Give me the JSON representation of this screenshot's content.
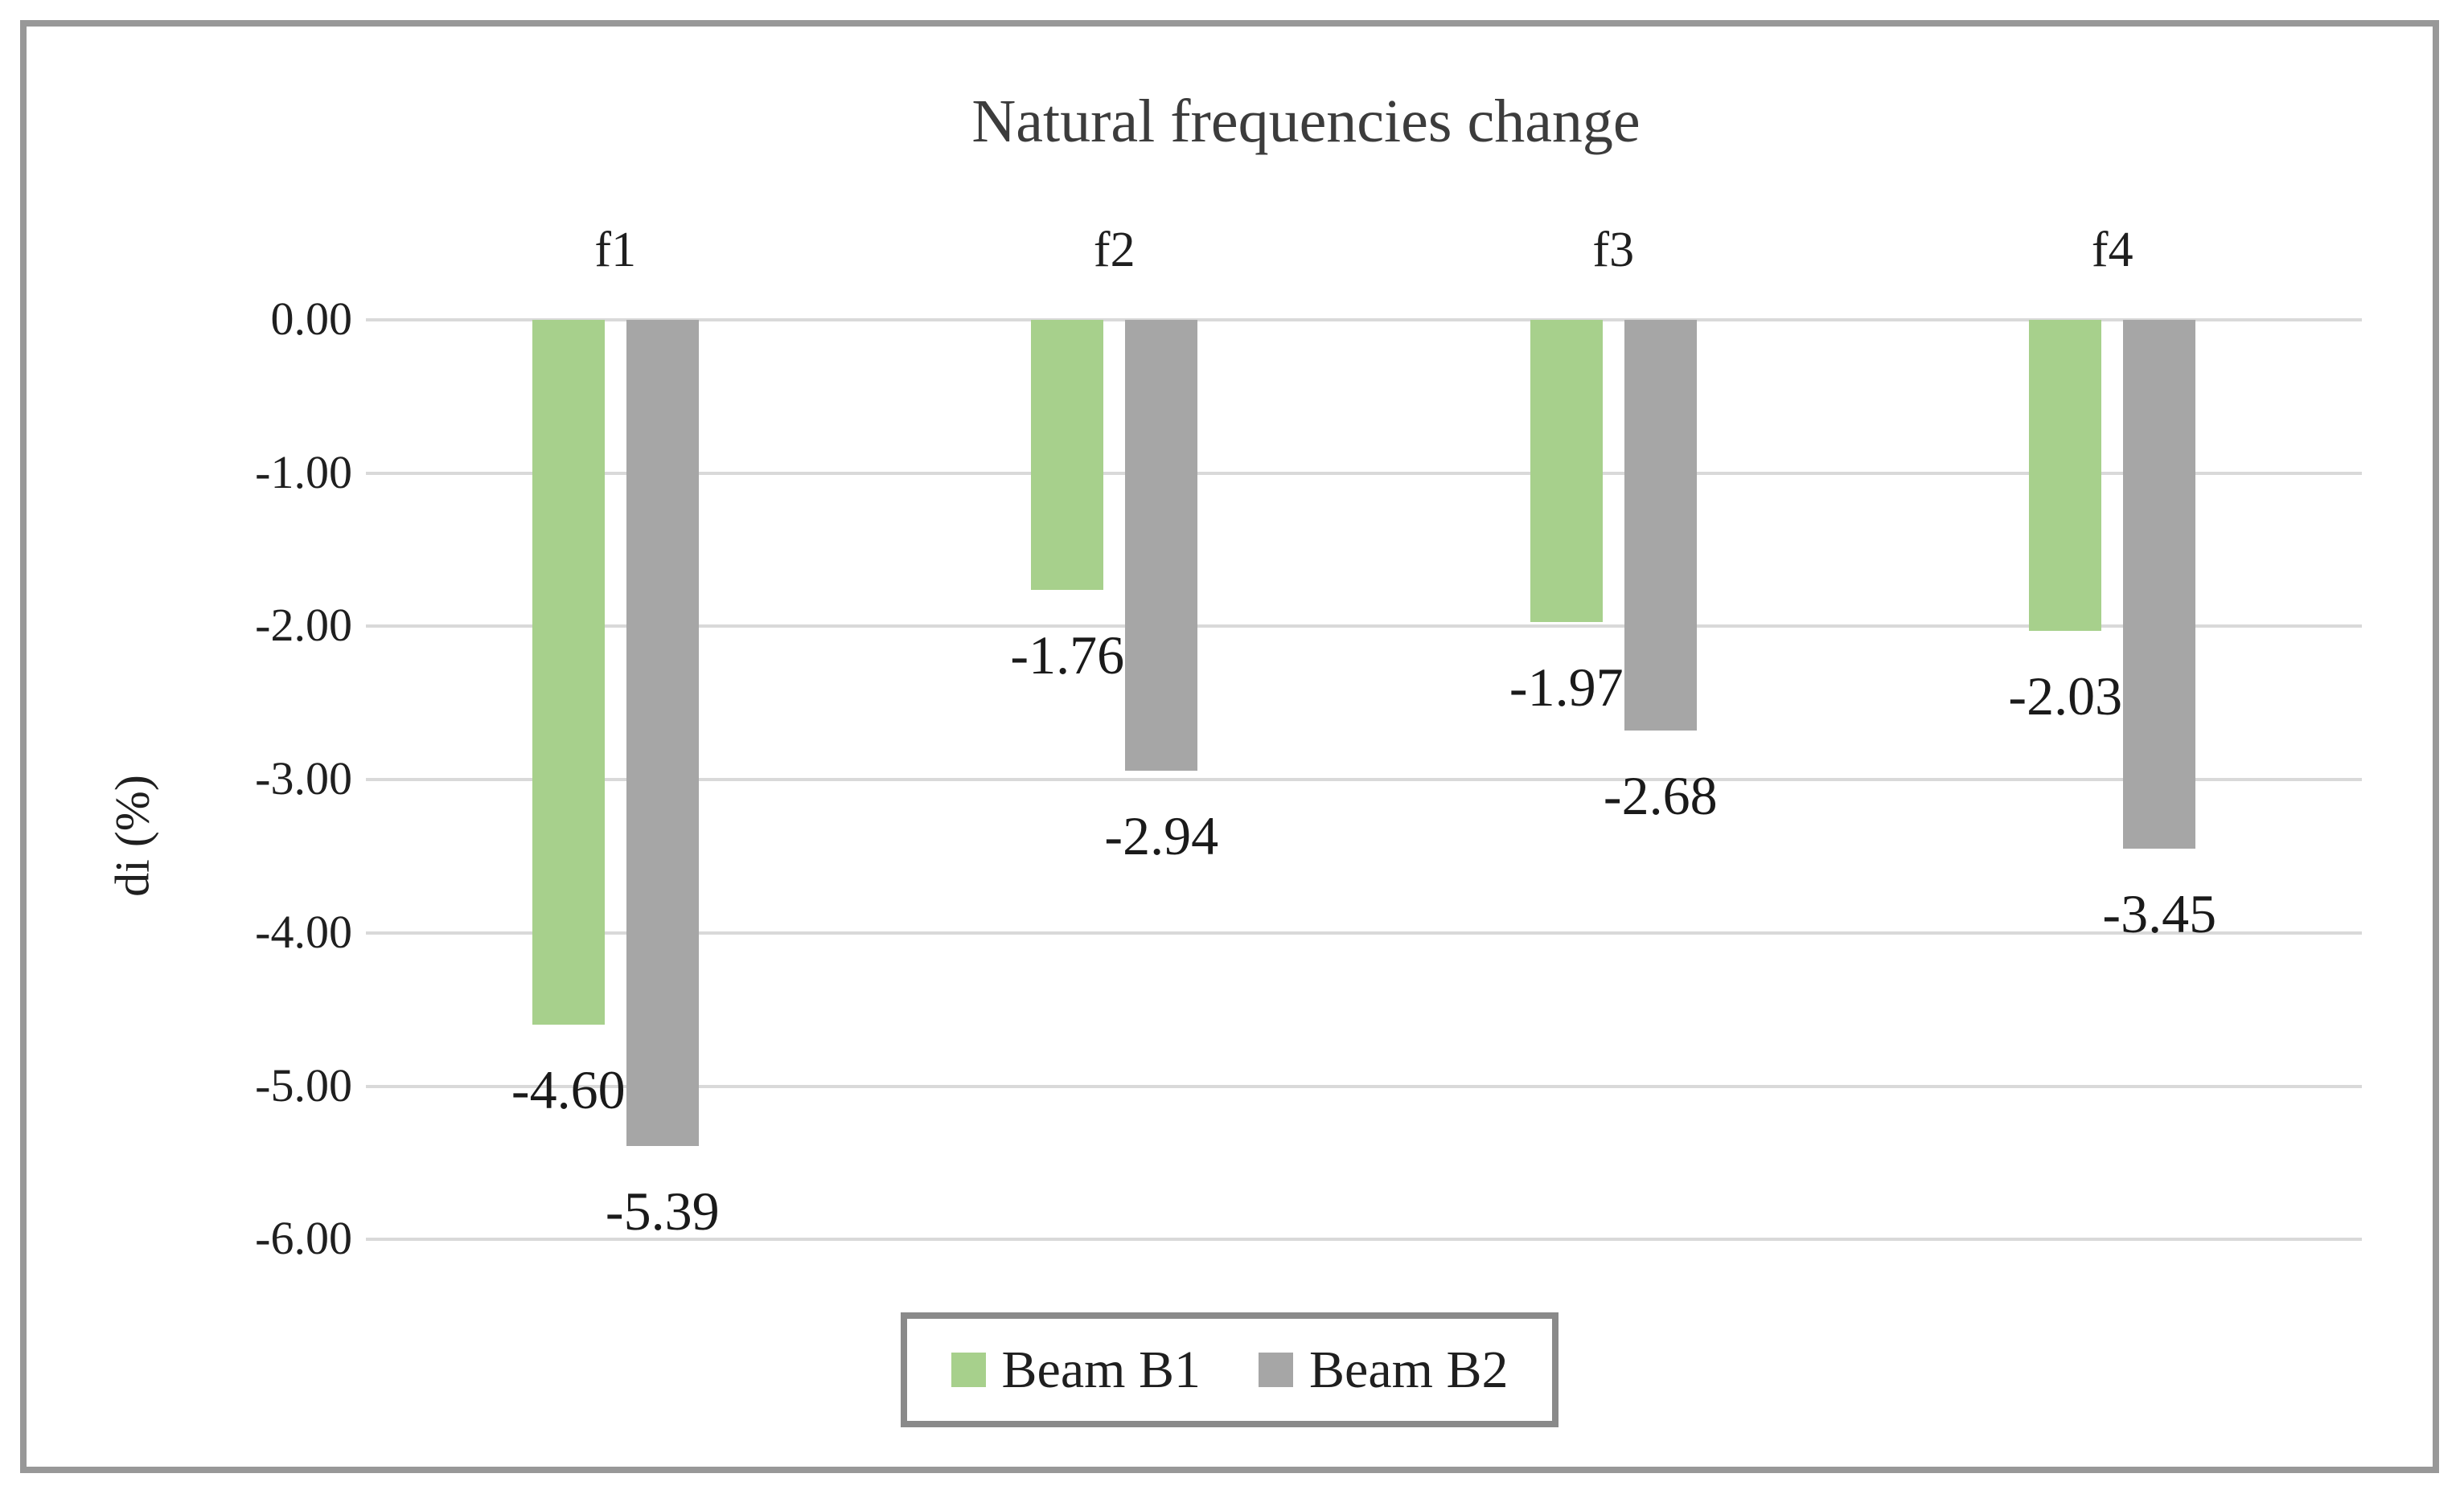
{
  "figure": {
    "background": "#ffffff",
    "border_color": "#989898"
  },
  "chart_data": {
    "type": "bar",
    "title": "Natural frequencies change",
    "categories": [
      "f1",
      "f2",
      "f3",
      "f4"
    ],
    "series": [
      {
        "name": "Beam B1",
        "color": "#a7d08c",
        "values": [
          -4.6,
          -1.76,
          -1.97,
          -2.03
        ]
      },
      {
        "name": "Beam B2",
        "color": "#a6a6a6",
        "values": [
          -5.39,
          -2.94,
          -2.68,
          -3.45
        ]
      }
    ],
    "data_labels": [
      [
        "-4.60",
        "-1.76",
        "-1.97",
        "-2.03"
      ],
      [
        "-5.39",
        "-2.94",
        "-2.68",
        "-3.45"
      ]
    ],
    "xlabel": "",
    "ylabel": "di (%)",
    "ylim": [
      -6,
      0
    ],
    "ytick_labels": [
      "0.00",
      "-1.00",
      "-2.00",
      "-3.00",
      "-4.00",
      "-5.00",
      "-6.00"
    ],
    "grid": true,
    "gridline_color": "#d9d9d9",
    "title_color": "#3c3c3c",
    "text_color": "#1f1f1f",
    "legend": {
      "position": "bottom-center",
      "border_color": "#8a8a8a",
      "entries": [
        "Beam B1",
        "Beam B2"
      ]
    }
  }
}
